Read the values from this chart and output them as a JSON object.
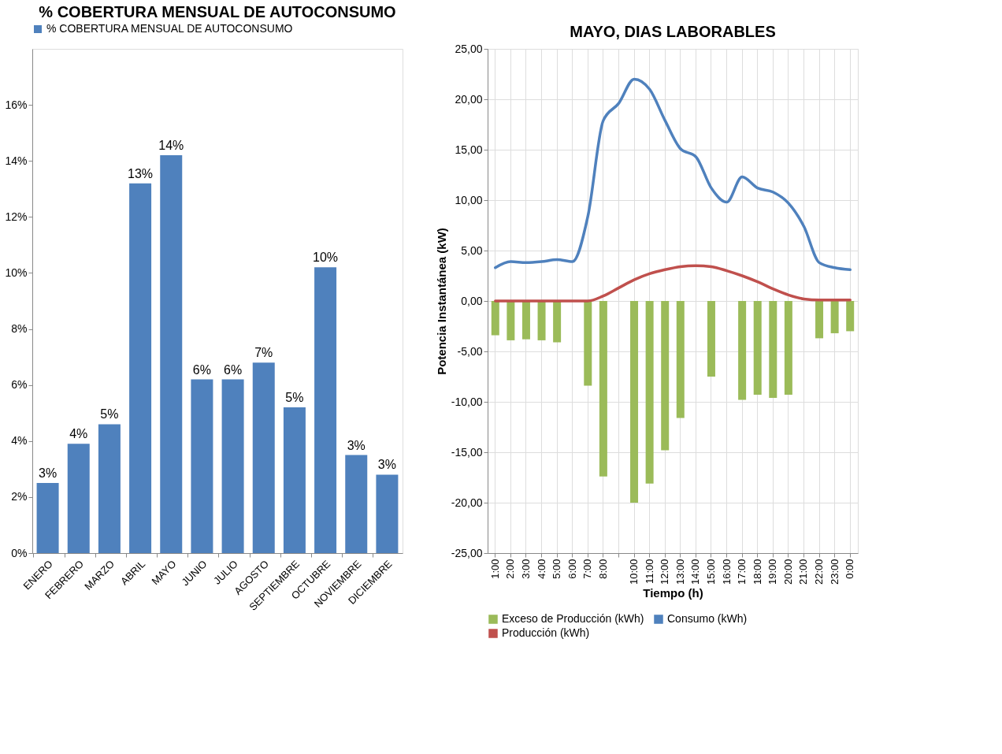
{
  "chart_data": [
    {
      "type": "bar",
      "title": "% COBERTURA MENSUAL DE AUTOCONSUMO",
      "categories": [
        "ENERO",
        "FEBRERO",
        "MARZO",
        "ABRIL",
        "MAYO",
        "JUNIO",
        "JULIO",
        "AGOSTO",
        "SEPTIEMBRE",
        "OCTUBRE",
        "NOVIEMBRE",
        "DICIEMBRE"
      ],
      "series": [
        {
          "name": "% COBERTURA MENSUAL DE AUTOCONSUMO",
          "color": "#4f81bd",
          "values": [
            2.5,
            3.9,
            4.6,
            13.2,
            14.2,
            6.2,
            6.2,
            6.8,
            5.2,
            10.2,
            3.5,
            2.8
          ],
          "value_labels": [
            "3%",
            "4%",
            "5%",
            "13%",
            "14%",
            "6%",
            "6%",
            "7%",
            "5%",
            "10%",
            "3%",
            "3%"
          ]
        }
      ],
      "ylim": [
        0,
        18
      ],
      "yticks": [
        {
          "value": 0,
          "label": "0%"
        },
        {
          "value": 2,
          "label": "2%"
        },
        {
          "value": 4,
          "label": "4%"
        },
        {
          "value": 6,
          "label": "6%"
        },
        {
          "value": 8,
          "label": "8%"
        },
        {
          "value": 10,
          "label": "10%"
        },
        {
          "value": 12,
          "label": "12%"
        },
        {
          "value": 14,
          "label": "14%"
        },
        {
          "value": 16,
          "label": "16%"
        }
      ],
      "legend": "top"
    },
    {
      "type": "line",
      "title": "MAYO, DIAS LABORABLES",
      "xlabel": "Tiempo (h)",
      "ylabel": "Potencia  Instantánea (kW)",
      "categories": [
        "1:00",
        "2:00",
        "3:00",
        "4:00",
        "5:00",
        "6:00",
        "7:00",
        "8:00",
        null,
        "10:00",
        "11:00",
        "12:00",
        "13:00",
        "14:00",
        "15:00",
        "16:00",
        "17:00",
        "18:00",
        "19:00",
        "20:00",
        "21:00",
        "22:00",
        "23:00",
        "0:00"
      ],
      "series": [
        {
          "name": "Exceso de Producción (kWh)",
          "type": "bar",
          "color": "#9bbb59",
          "values": [
            -3.4,
            -3.9,
            -3.8,
            -3.9,
            -4.1,
            null,
            -8.4,
            -17.4,
            null,
            -20.0,
            -18.1,
            -14.8,
            -11.6,
            null,
            -7.5,
            null,
            -9.8,
            -9.3,
            -9.6,
            -9.3,
            null,
            -3.7,
            -3.2,
            -3.0
          ]
        },
        {
          "name": "Consumo (kWh)",
          "color": "#4f81bd",
          "values": [
            3.3,
            3.9,
            3.8,
            3.9,
            4.1,
            3.9,
            8.4,
            17.9,
            19.6,
            22.0,
            21.0,
            17.9,
            15.1,
            14.3,
            11.2,
            9.8,
            12.3,
            11.2,
            10.8,
            9.7,
            7.4,
            3.8,
            3.3,
            3.1
          ]
        },
        {
          "name": "Producción (kWh)",
          "color": "#c0504d",
          "values": [
            0,
            0,
            0,
            0,
            0,
            0,
            0,
            0.5,
            1.3,
            2.1,
            2.7,
            3.1,
            3.4,
            3.5,
            3.4,
            3.0,
            2.5,
            1.9,
            1.2,
            0.6,
            0.2,
            0.1,
            0.1,
            0.1
          ]
        }
      ],
      "ylim": [
        -25,
        25
      ],
      "yticks": [
        {
          "value": -25,
          "label": "-25,00"
        },
        {
          "value": -20,
          "label": "-20,00"
        },
        {
          "value": -15,
          "label": "-15,00"
        },
        {
          "value": -10,
          "label": "-10,00"
        },
        {
          "value": -5,
          "label": "-5,00"
        },
        {
          "value": 0,
          "label": "0,00"
        },
        {
          "value": 5,
          "label": "5,00"
        },
        {
          "value": 10,
          "label": "10,00"
        },
        {
          "value": 15,
          "label": "15,00"
        },
        {
          "value": 20,
          "label": "20,00"
        },
        {
          "value": 25,
          "label": "25,00"
        }
      ],
      "grid": true,
      "legend": "bottom"
    }
  ]
}
